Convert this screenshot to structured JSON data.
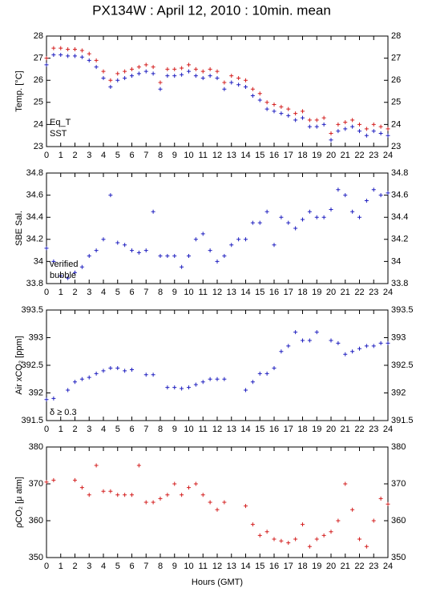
{
  "chart_data": [
    {
      "type": "scatter",
      "title": "PX134W : April 12, 2010 : 10min. mean",
      "ylabel": "Temp. [°C]",
      "x": [
        0,
        0.5,
        1,
        1.5,
        2,
        2.5,
        3,
        3.5,
        4,
        4.5,
        5,
        5.5,
        6,
        6.5,
        7,
        7.5,
        8,
        8.5,
        9,
        9.5,
        10,
        10.5,
        11,
        11.5,
        12,
        12.5,
        13,
        13.5,
        14,
        14.5,
        15,
        15.5,
        16,
        16.5,
        17,
        17.5,
        18,
        18.5,
        19,
        19.5,
        20,
        20.5,
        21,
        21.5,
        22,
        22.5,
        23,
        23.5,
        24
      ],
      "series": [
        {
          "name": "Eq_T",
          "color": "#d42020",
          "values": [
            27.0,
            27.45,
            27.45,
            27.4,
            27.4,
            27.35,
            27.2,
            26.9,
            26.4,
            26.0,
            26.3,
            26.4,
            26.5,
            26.6,
            26.7,
            26.6,
            25.9,
            26.5,
            26.5,
            26.55,
            26.7,
            26.5,
            26.4,
            26.5,
            26.4,
            25.9,
            26.2,
            26.1,
            26.0,
            25.6,
            25.4,
            25.0,
            24.9,
            24.8,
            24.7,
            24.5,
            24.6,
            24.2,
            24.2,
            24.3,
            23.6,
            24.0,
            24.1,
            24.2,
            24.0,
            23.8,
            24.0,
            23.9,
            23.8
          ]
        },
        {
          "name": "SST",
          "color": "#2020c0",
          "values": [
            26.7,
            27.15,
            27.15,
            27.1,
            27.1,
            27.05,
            26.9,
            26.6,
            26.1,
            25.7,
            26.0,
            26.1,
            26.2,
            26.3,
            26.4,
            26.3,
            25.6,
            26.2,
            26.2,
            26.25,
            26.4,
            26.2,
            26.1,
            26.2,
            26.1,
            25.6,
            25.9,
            25.8,
            25.7,
            25.3,
            25.1,
            24.7,
            24.6,
            24.5,
            24.4,
            24.2,
            24.3,
            23.9,
            23.9,
            24.0,
            23.3,
            23.7,
            23.8,
            23.9,
            23.7,
            23.5,
            23.7,
            23.6,
            23.5
          ]
        }
      ],
      "legend": "lower left",
      "xlim": [
        0,
        24
      ],
      "xticks": [
        0,
        1,
        2,
        3,
        4,
        5,
        6,
        7,
        8,
        9,
        10,
        11,
        12,
        13,
        14,
        15,
        16,
        17,
        18,
        19,
        20,
        21,
        22,
        23,
        24
      ],
      "ylim": [
        23,
        28
      ],
      "yticks": [
        23,
        24,
        25,
        26,
        27,
        28
      ]
    },
    {
      "type": "scatter",
      "ylabel": "SBE Sal.",
      "x": [
        0,
        0.5,
        1,
        1.5,
        2,
        2.5,
        3,
        3.5,
        4,
        4.5,
        5,
        5.5,
        6,
        6.5,
        7,
        7.5,
        8,
        8.5,
        9,
        9.5,
        10,
        10.5,
        11,
        11.5,
        12,
        12.5,
        13,
        13.5,
        14,
        14.5,
        15,
        15.5,
        16,
        16.5,
        17,
        17.5,
        18,
        18.5,
        19,
        19.5,
        20,
        20.5,
        21,
        21.5,
        22,
        22.5,
        23,
        23.5,
        24
      ],
      "series": [
        {
          "color": "#2020c0",
          "values": [
            34.12,
            34.0,
            33.87,
            33.85,
            33.9,
            33.95,
            34.05,
            34.1,
            34.2,
            34.6,
            34.17,
            34.15,
            34.1,
            34.08,
            34.1,
            34.45,
            34.05,
            34.05,
            34.05,
            33.95,
            34.05,
            34.2,
            34.25,
            34.1,
            34.0,
            34.05,
            34.15,
            34.2,
            34.2,
            34.35,
            34.35,
            34.45,
            34.15,
            34.4,
            34.35,
            34.3,
            34.38,
            34.45,
            34.4,
            34.4,
            34.47,
            34.65,
            34.6,
            34.45,
            34.4,
            34.55,
            34.65,
            34.6,
            34.62
          ]
        }
      ],
      "annotations": [
        {
          "text": "verified",
          "color": "#2020c0"
        },
        {
          "text": "bubble",
          "color": "#cc20cc"
        }
      ],
      "xlim": [
        0,
        24
      ],
      "xticks": [
        0,
        1,
        2,
        3,
        4,
        5,
        6,
        7,
        8,
        9,
        10,
        11,
        12,
        13,
        14,
        15,
        16,
        17,
        18,
        19,
        20,
        21,
        22,
        23,
        24
      ],
      "ylim": [
        33.8,
        34.8
      ],
      "yticks": [
        33.8,
        34,
        34.2,
        34.4,
        34.6,
        34.8
      ]
    },
    {
      "type": "scatter",
      "ylabel": "Air xCO₂ [ppm]",
      "x": [
        0,
        0.5,
        1,
        1.5,
        2,
        2.5,
        3,
        3.5,
        4,
        4.5,
        5,
        5.5,
        6,
        6.5,
        7,
        7.5,
        8,
        8.5,
        9,
        9.5,
        10,
        10.5,
        11,
        11.5,
        12,
        12.5,
        13,
        13.5,
        14,
        14.5,
        15,
        15.5,
        16,
        16.5,
        17,
        17.5,
        18,
        18.5,
        19,
        19.5,
        20,
        20.5,
        21,
        21.5,
        22,
        22.5,
        23,
        23.5,
        24
      ],
      "series": [
        {
          "color": "#2020c0",
          "values": [
            391.88,
            391.9,
            null,
            392.05,
            392.2,
            392.25,
            392.28,
            392.35,
            392.4,
            392.45,
            392.45,
            392.4,
            392.42,
            null,
            392.33,
            392.33,
            null,
            392.1,
            392.1,
            392.08,
            392.1,
            392.15,
            392.2,
            392.25,
            392.25,
            392.25,
            null,
            null,
            392.05,
            392.2,
            392.35,
            392.35,
            392.45,
            392.75,
            392.85,
            393.1,
            392.95,
            392.95,
            393.1,
            null,
            392.95,
            392.9,
            392.7,
            392.75,
            392.8,
            392.85,
            392.85,
            392.9,
            392.9
          ]
        }
      ],
      "annotations": [
        {
          "text": "δ ≥ 0.3",
          "color": "#cc20cc"
        }
      ],
      "xlim": [
        0,
        24
      ],
      "xticks": [
        0,
        1,
        2,
        3,
        4,
        5,
        6,
        7,
        8,
        9,
        10,
        11,
        12,
        13,
        14,
        15,
        16,
        17,
        18,
        19,
        20,
        21,
        22,
        23,
        24
      ],
      "ylim": [
        391.5,
        393.5
      ],
      "yticks": [
        391.5,
        392,
        392.5,
        393,
        393.5
      ]
    },
    {
      "type": "scatter",
      "ylabel": "ρCO₂ [μ atm]",
      "xlabel": "Hours (GMT)",
      "x": [
        0,
        0.5,
        1,
        1.5,
        2,
        2.5,
        3,
        3.5,
        4,
        4.5,
        5,
        5.5,
        6,
        6.5,
        7,
        7.5,
        8,
        8.5,
        9,
        9.5,
        10,
        10.5,
        11,
        11.5,
        12,
        12.5,
        13,
        13.5,
        14,
        14.5,
        15,
        15.5,
        16,
        16.5,
        17,
        17.5,
        18,
        18.5,
        19,
        19.5,
        20,
        20.5,
        21,
        21.5,
        22,
        22.5,
        23,
        23.5,
        24
      ],
      "series": [
        {
          "color": "#d42020",
          "values": [
            370.5,
            371,
            null,
            null,
            371,
            369,
            367,
            375,
            368,
            368,
            367,
            367,
            367,
            375,
            365,
            365,
            366,
            367,
            370,
            367,
            369,
            370,
            367,
            365,
            363,
            365,
            null,
            null,
            364,
            359,
            356,
            357,
            355,
            354.5,
            354,
            355,
            359,
            353,
            355,
            356,
            357,
            360,
            370,
            363,
            355,
            353,
            360,
            366,
            364.5
          ]
        }
      ],
      "xlim": [
        0,
        24
      ],
      "xticks": [
        0,
        1,
        2,
        3,
        4,
        5,
        6,
        7,
        8,
        9,
        10,
        11,
        12,
        13,
        14,
        15,
        16,
        17,
        18,
        19,
        20,
        21,
        22,
        23,
        24
      ],
      "ylim": [
        350,
        380
      ],
      "yticks": [
        350,
        360,
        370,
        380
      ]
    }
  ]
}
